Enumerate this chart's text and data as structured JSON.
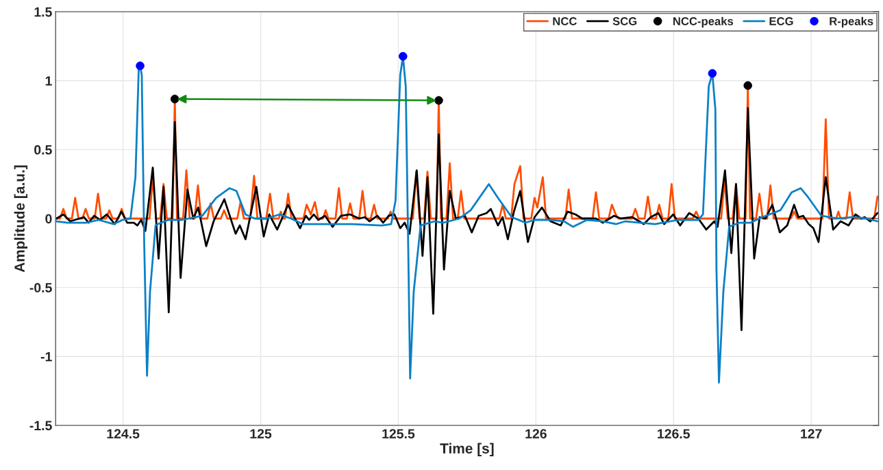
{
  "chart_data": {
    "type": "line",
    "xlabel": "Time [s]",
    "ylabel": "Amplitude [a.u.]",
    "xlim": [
      124.255,
      127.245
    ],
    "ylim": [
      -1.5,
      1.5
    ],
    "xticks": [
      124.5,
      125,
      125.5,
      126,
      126.5,
      127
    ],
    "yticks": [
      -1.5,
      -1,
      -0.5,
      0,
      0.5,
      1,
      1.5
    ],
    "grid": true,
    "legend": "top right",
    "series": [
      {
        "name": "NCC",
        "color": "#ff4d00",
        "x": [
          124.258,
          124.271,
          124.283,
          124.295,
          124.314,
          124.326,
          124.338,
          124.352,
          124.364,
          124.376,
          124.397,
          124.409,
          124.421,
          124.438,
          124.45,
          124.462,
          124.483,
          124.495,
          124.507,
          124.596,
          124.608,
          124.62,
          124.635,
          124.647,
          124.659,
          124.68,
          124.688,
          124.696,
          124.718,
          124.73,
          124.742,
          124.76,
          124.772,
          124.784,
          124.806,
          124.818,
          124.83,
          124.855,
          124.867,
          124.879,
          124.915,
          124.927,
          124.939,
          124.962,
          124.976,
          124.988,
          125.02,
          125.034,
          125.046,
          125.066,
          125.073,
          125.08,
          125.088,
          125.1,
          125.112,
          125.155,
          125.167,
          125.182,
          125.197,
          125.209,
          125.226,
          125.236,
          125.246,
          125.272,
          125.284,
          125.296,
          125.313,
          125.325,
          125.337,
          125.358,
          125.37,
          125.382,
          125.4,
          125.412,
          125.424,
          125.462,
          125.472,
          125.482,
          125.553,
          125.565,
          125.577,
          125.594,
          125.606,
          125.618,
          125.639,
          125.647,
          125.655,
          125.675,
          125.687,
          125.699,
          125.716,
          125.728,
          125.74,
          125.867,
          125.879,
          125.891,
          125.91,
          125.922,
          125.943,
          125.955,
          125.983,
          125.995,
          126.005,
          126.025,
          126.037,
          126.107,
          126.119,
          126.131,
          126.206,
          126.218,
          126.23,
          126.264,
          126.276,
          126.29,
          126.3,
          126.349,
          126.361,
          126.373,
          126.395,
          126.407,
          126.419,
          126.436,
          126.448,
          126.46,
          126.481,
          126.493,
          126.505,
          126.57,
          126.582,
          126.594,
          126.673,
          126.685,
          126.697,
          126.715,
          126.727,
          126.739,
          126.762,
          126.77,
          126.778,
          126.8,
          126.812,
          126.824,
          126.84,
          126.852,
          126.864,
          126.926,
          126.938,
          126.95,
          127.041,
          127.053,
          127.065,
          127.091,
          127.099,
          127.107,
          127.128,
          127.14,
          127.152,
          127.229,
          127.241
        ],
        "values": [
          0,
          0,
          0.07,
          0,
          0,
          0.15,
          0,
          0,
          0.07,
          0,
          0,
          0.18,
          0,
          0,
          0.06,
          0,
          0,
          0.07,
          0,
          0,
          0.3,
          0,
          0,
          0.25,
          0,
          0,
          0.867,
          0,
          0,
          0.35,
          0,
          0,
          0.24,
          0,
          0,
          0.11,
          0,
          0,
          0.06,
          0,
          0,
          0.12,
          0,
          0,
          0.31,
          0,
          0,
          0.18,
          0,
          0,
          0.05,
          0,
          0,
          0.18,
          0,
          0,
          0.1,
          0.03,
          0.12,
          0,
          0,
          0.06,
          0,
          0,
          0.22,
          0,
          0,
          0.11,
          0,
          0,
          0.2,
          0,
          0,
          0.1,
          0,
          0,
          0.05,
          0,
          0,
          0.34,
          0,
          0,
          0.34,
          0,
          0,
          0.857,
          0,
          0,
          0.4,
          0,
          0,
          0.2,
          0,
          0,
          0.1,
          0,
          0,
          0.25,
          0.38,
          0,
          0,
          0.15,
          0.08,
          0.3,
          0,
          0,
          0.21,
          0,
          0,
          0.19,
          0,
          0,
          0.1,
          0.03,
          0,
          0,
          0.07,
          0,
          0,
          0.16,
          0,
          0,
          0.1,
          0,
          0,
          0.25,
          0,
          0,
          0.05,
          0,
          0,
          0.28,
          0,
          0,
          0.25,
          0,
          0,
          0.965,
          0,
          0,
          0.18,
          0,
          0,
          0.24,
          0,
          0,
          0.05,
          0,
          0,
          0.72,
          0,
          0,
          0.05,
          0,
          0,
          0.19,
          0,
          0,
          0.16
        ]
      },
      {
        "name": "SCG",
        "color": "#000000",
        "x": [
          124.258,
          124.283,
          124.308,
          124.358,
          124.375,
          124.395,
          124.416,
          124.441,
          124.47,
          124.494,
          124.515,
          124.539,
          124.552,
          124.566,
          124.581,
          124.608,
          124.629,
          124.647,
          124.666,
          124.688,
          124.709,
          124.734,
          124.755,
          124.773,
          124.802,
          124.829,
          124.868,
          124.909,
          124.924,
          124.945,
          124.984,
          125.011,
          125.031,
          125.06,
          125.099,
          125.143,
          125.164,
          125.176,
          125.193,
          125.209,
          125.234,
          125.261,
          125.292,
          125.325,
          125.358,
          125.379,
          125.395,
          125.424,
          125.445,
          125.465,
          125.486,
          125.507,
          125.523,
          125.541,
          125.567,
          125.588,
          125.606,
          125.627,
          125.647,
          125.666,
          125.687,
          125.709,
          125.742,
          125.767,
          125.792,
          125.821,
          125.836,
          125.862,
          125.879,
          125.898,
          125.92,
          125.943,
          125.971,
          125.995,
          126.022,
          126.053,
          126.09,
          126.115,
          126.144,
          126.168,
          126.218,
          126.243,
          126.284,
          126.309,
          126.35,
          126.392,
          126.417,
          126.445,
          126.466,
          126.499,
          126.524,
          126.557,
          126.59,
          126.619,
          126.648,
          126.66,
          126.687,
          126.71,
          126.727,
          126.747,
          126.77,
          126.793,
          126.813,
          126.834,
          126.859,
          126.886,
          126.913,
          126.938,
          126.954,
          126.971,
          126.991,
          127.008,
          127.027,
          127.053,
          127.08,
          127.107,
          127.136,
          127.161,
          127.182,
          127.194,
          127.215,
          127.241
        ],
        "values": [
          0,
          0.03,
          -0.02,
          0.01,
          -0.03,
          0.02,
          -0.01,
          0.03,
          -0.04,
          0.05,
          -0.03,
          -0.03,
          -0.05,
          -0.01,
          -0.09,
          0.37,
          -0.29,
          0.23,
          -0.68,
          0.7,
          -0.43,
          0.21,
          0,
          0.08,
          -0.2,
          -0.02,
          0.14,
          -0.11,
          -0.05,
          -0.15,
          0.23,
          -0.13,
          0.03,
          -0.08,
          0.1,
          -0.07,
          0.02,
          -0.01,
          0.03,
          -0.01,
          0.02,
          -0.06,
          0.02,
          0.03,
          0,
          0.01,
          -0.02,
          0.02,
          -0.03,
          0.02,
          0.03,
          -0.07,
          -0.03,
          -0.11,
          0.35,
          -0.27,
          0.3,
          -0.69,
          0.61,
          -0.37,
          0.2,
          0,
          0.02,
          -0.1,
          0.02,
          0.04,
          0.07,
          -0.05,
          0.01,
          -0.15,
          0.05,
          0.2,
          -0.17,
          0.01,
          0.08,
          -0.02,
          -0.05,
          0.05,
          0.03,
          0,
          0,
          -0.03,
          0.02,
          0,
          0.01,
          -0.04,
          0.01,
          0.04,
          -0.04,
          0.03,
          -0.05,
          0.04,
          0,
          -0.08,
          -0.02,
          -0.06,
          0.35,
          -0.25,
          0.25,
          -0.81,
          0.8,
          -0.29,
          0.01,
          0,
          0.1,
          -0.1,
          -0.05,
          0.1,
          0.01,
          0.02,
          -0.04,
          -0.07,
          -0.17,
          0.3,
          -0.08,
          -0.02,
          -0.05,
          0.03,
          0,
          0.01,
          -0.02,
          0.04
        ]
      },
      {
        "name": "NCC-peaks",
        "type": "scatter",
        "marker": "circle",
        "color": "#000000",
        "x": [
          124.688,
          125.647,
          126.77
        ],
        "values": [
          0.867,
          0.857,
          0.965
        ]
      },
      {
        "name": "ECG",
        "color": "#0a80c6",
        "x": [
          124.258,
          124.3,
          124.366,
          124.412,
          124.466,
          124.498,
          124.527,
          124.545,
          124.557,
          124.562,
          124.568,
          124.577,
          124.587,
          124.598,
          124.618,
          124.627,
          124.664,
          124.713,
          124.788,
          124.838,
          124.887,
          124.912,
          124.945,
          124.978,
          125.02,
          125.069,
          125.11,
          125.153,
          125.25,
          125.333,
          125.44,
          125.474,
          125.49,
          125.507,
          125.517,
          125.527,
          125.536,
          125.543,
          125.556,
          125.581,
          125.631,
          125.664,
          125.722,
          125.763,
          125.829,
          125.862,
          125.912,
          125.962,
          125.995,
          126.053,
          126.102,
          126.135,
          126.185,
          126.243,
          126.292,
          126.325,
          126.433,
          126.516,
          126.59,
          126.607,
          126.628,
          126.641,
          126.652,
          126.656,
          126.665,
          126.681,
          126.702,
          126.739,
          126.78,
          126.822,
          126.888,
          126.929,
          126.962,
          126.987,
          127.037,
          127.095,
          127.153,
          127.202,
          127.241
        ],
        "values": [
          -0.02,
          -0.03,
          -0.03,
          -0.01,
          -0.04,
          -0.01,
          0,
          0.3,
          1.09,
          1.108,
          1.04,
          -0.2,
          -1.14,
          -0.53,
          -0.05,
          -0.04,
          -0.01,
          -0.01,
          0.02,
          0.15,
          0.22,
          0.2,
          0.03,
          0,
          0,
          0.03,
          0,
          -0.04,
          -0.04,
          -0.04,
          -0.05,
          -0.04,
          0.13,
          1.04,
          1.177,
          0.96,
          -0.2,
          -1.16,
          -0.53,
          -0.05,
          -0.02,
          -0.03,
          0,
          0.06,
          0.25,
          0.15,
          0.01,
          -0.03,
          -0.01,
          -0.01,
          -0.02,
          -0.06,
          -0.01,
          -0.02,
          -0.04,
          -0.02,
          -0.04,
          -0.01,
          -0.01,
          0.03,
          0.96,
          1.053,
          0.79,
          -0.37,
          -1.19,
          -0.53,
          -0.06,
          -0.03,
          -0.03,
          0.01,
          0.06,
          0.19,
          0.22,
          0.16,
          0.02,
          0,
          0.01,
          0,
          -0.02
        ]
      },
      {
        "name": "R-peaks",
        "type": "scatter",
        "marker": "circle",
        "color": "#0000ff",
        "x": [
          124.562,
          125.517,
          126.641
        ],
        "values": [
          1.108,
          1.177,
          1.053
        ]
      }
    ]
  }
}
